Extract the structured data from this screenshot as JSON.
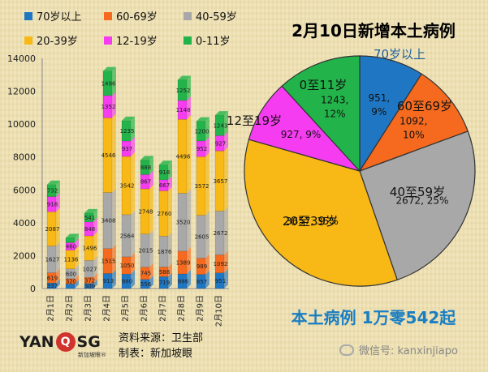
{
  "legend": [
    {
      "label": "70岁以上",
      "color": "#1f77c4"
    },
    {
      "label": "60-69岁",
      "color": "#f56a1e"
    },
    {
      "label": "40-59岁",
      "color": "#a8a8a8"
    },
    {
      "label": "20-39岁",
      "color": "#f8b815"
    },
    {
      "label": "12-19岁",
      "color": "#f53cf0"
    },
    {
      "label": "0-11岁",
      "color": "#22b44a"
    }
  ],
  "chart_data": [
    {
      "type": "bar",
      "stacked": true,
      "categories": [
        "2月1日",
        "2月2日",
        "2月3日",
        "2月4日",
        "2月5日",
        "2月6日",
        "2月7日",
        "2月8日",
        "2月9日",
        "2月10日"
      ],
      "ylim": [
        0,
        14000
      ],
      "yticks": [
        "0",
        "2000",
        "4000",
        "6000",
        "8000",
        "10000",
        "12000",
        "14000"
      ],
      "series": [
        {
          "name": "70岁以上",
          "values": [
            337,
            275,
            309,
            913,
            880,
            556,
            719,
            886,
            857,
            951
          ]
        },
        {
          "name": "60-69岁",
          "values": [
            619,
            320,
            372,
            1515,
            1050,
            745,
            588,
            1389,
            989,
            1092
          ]
        },
        {
          "name": "40-59岁",
          "values": [
            1627,
            600,
            1027,
            3408,
            2564,
            2015,
            1876,
            3520,
            2605,
            2672
          ]
        },
        {
          "name": "20-39岁",
          "values": [
            2087,
            1136,
            1496,
            4546,
            3542,
            2748,
            2760,
            4496,
            3572,
            3657
          ]
        },
        {
          "name": "12-19岁",
          "values": [
            918,
            460,
            848,
            1352,
            937,
            867,
            667,
            1148,
            952,
            927
          ]
        },
        {
          "name": "0-11岁",
          "values": [
            732,
            291,
            541,
            1496,
            1235,
            888,
            918,
            1252,
            1200,
            1243
          ]
        }
      ],
      "data_labels": [
        [
          "337",
          "619",
          "1627",
          "2087",
          "918",
          "732"
        ],
        [
          "275",
          "320",
          "600",
          "1136",
          "460",
          "291"
        ],
        [
          "309",
          "372",
          "1027",
          "1496",
          "848",
          "541"
        ],
        [
          "913",
          "1515",
          "3408",
          "4546",
          "1352",
          "1496"
        ],
        [
          "880",
          "1050",
          "2564",
          "3542",
          "937",
          "1235"
        ],
        [
          "556",
          "745",
          "2015",
          "2748",
          "867",
          "888"
        ],
        [
          "719",
          "588",
          "1876",
          "2760",
          "667",
          "918"
        ],
        [
          "886",
          "1389",
          "3520",
          "4496",
          "1148",
          "1252"
        ],
        [
          "857",
          "989",
          "2605",
          "3572",
          "952",
          "1200"
        ],
        [
          "951",
          "1092",
          "2672",
          "3657",
          "927",
          "1243"
        ]
      ],
      "legend_position": "top"
    },
    {
      "type": "pie",
      "title": "2月10日新增本土病例",
      "slices": [
        {
          "name": "70岁以上",
          "label": "70岁以上",
          "value": 951,
          "text": "951,",
          "pct_text": "9%"
        },
        {
          "name": "60至69岁",
          "label": "60至69岁",
          "value": 1092,
          "text": "1092,",
          "pct_text": "10%"
        },
        {
          "name": "40至59岁",
          "label": "40至59岁",
          "value": 2672,
          "text": "2672, 25%",
          "pct_text": ""
        },
        {
          "name": "20至39岁",
          "label": "20至39岁",
          "value": 3657,
          "text": "3657, 35%",
          "pct_text": ""
        },
        {
          "name": "12至19岁",
          "label": "12至19岁",
          "value": 927,
          "text": "927, 9%",
          "pct_text": ""
        },
        {
          "name": "0至11岁",
          "label": "0至11岁",
          "value": 1243,
          "text": "1243,",
          "pct_text": "12%"
        }
      ],
      "colors": [
        "#1f77c4",
        "#f56a1e",
        "#a8a8a8",
        "#f8b815",
        "#f53cf0",
        "#22b44a"
      ]
    }
  ],
  "summary": "本土病例 1万零542起",
  "source": {
    "line1": "资料来源：卫生部",
    "line2": "制表：新加坡眼"
  },
  "logo": {
    "left": "YAN",
    "q": "Q",
    "right": "SG",
    "sub": "新加坡眼®"
  },
  "watermark": "微信号: kanxinjiapo"
}
